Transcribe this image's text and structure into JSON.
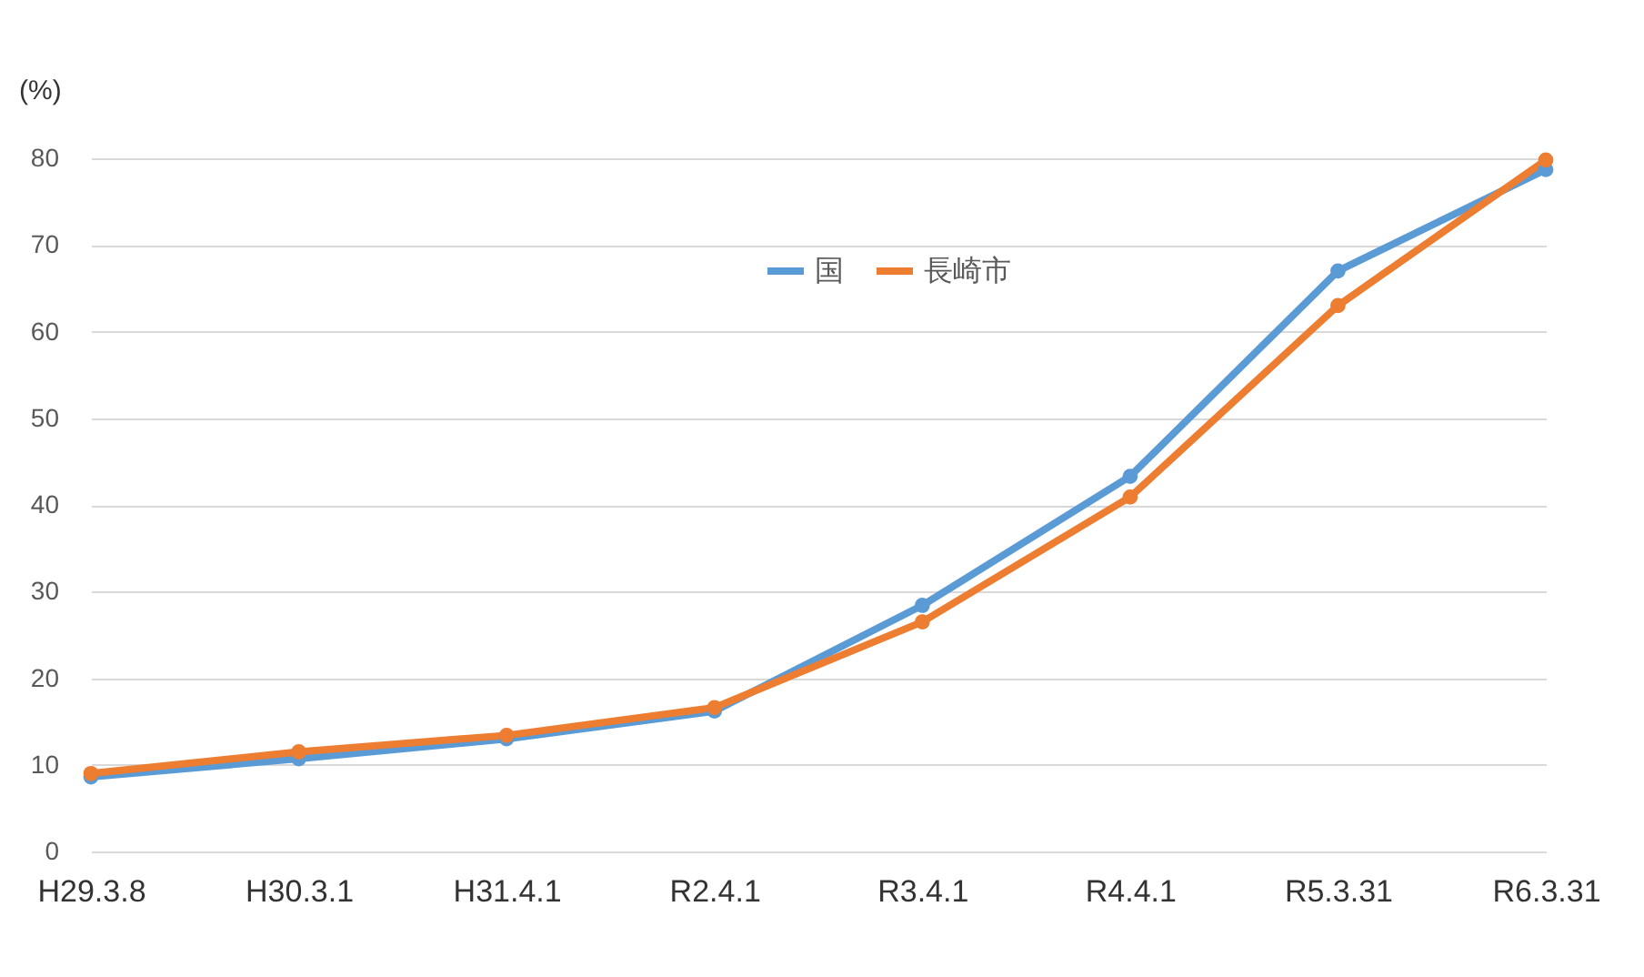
{
  "chart_data": {
    "type": "line",
    "ylabel": "(%)",
    "categories": [
      "H29.3.8",
      "H30.3.1",
      "H31.4.1",
      "R2.4.1",
      "R3.4.1",
      "R4.4.1",
      "R5.3.31",
      "R6.3.31"
    ],
    "series": [
      {
        "name": "国",
        "color": "#5b9bd5",
        "values": [
          8.6,
          10.7,
          13.0,
          16.2,
          28.4,
          43.3,
          67.0,
          78.7
        ]
      },
      {
        "name": "長崎市",
        "color": "#ed7d31",
        "values": [
          9.0,
          11.5,
          13.4,
          16.6,
          26.5,
          40.9,
          63.0,
          79.8
        ]
      }
    ],
    "ylim": [
      0,
      80
    ],
    "yticks": [
      0,
      10,
      20,
      30,
      40,
      50,
      60,
      70,
      80
    ],
    "grid": "y",
    "legend": "top",
    "marker": "circle",
    "line_style": "solid"
  }
}
